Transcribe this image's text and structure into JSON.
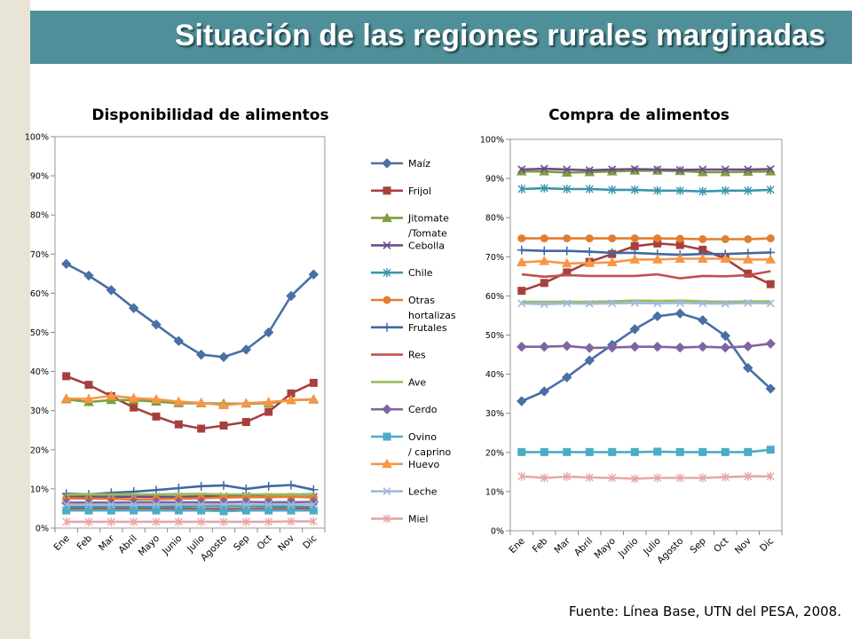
{
  "page": {
    "title": "Situación de las regiones rurales marginadas",
    "source": "Fuente: Línea Base, UTN del PESA, 2008."
  },
  "chart_data": [
    {
      "type": "line",
      "title": "Disponibilidad de alimentos",
      "xlabel": "",
      "ylabel": "",
      "ylim": [
        0,
        100
      ],
      "y_tick_labels": [
        "0%",
        "10%",
        "20%",
        "30%",
        "40%",
        "50%",
        "60%",
        "70%",
        "80%",
        "90%",
        "100%"
      ],
      "categories": [
        "Ene",
        "Feb",
        "Mar",
        "Abril",
        "Mayo",
        "Junio",
        "Julio",
        "Agosto",
        "Sep",
        "Oct",
        "Nov",
        "Dic"
      ],
      "legend_position": "right",
      "series": [
        {
          "name": "Maíz",
          "color": "#4a6fa5",
          "marker": "diamond",
          "values": [
            67.5,
            64.5,
            60.8,
            56.2,
            52.0,
            47.8,
            44.3,
            43.7,
            45.6,
            50.0,
            59.3,
            64.8
          ]
        },
        {
          "name": "Frijol",
          "color": "#a6403d",
          "marker": "square",
          "values": [
            38.8,
            36.6,
            33.7,
            30.8,
            28.5,
            26.5,
            25.4,
            26.2,
            27.1,
            29.7,
            34.4,
            37.1
          ]
        },
        {
          "name": "Jitomate /Tomate",
          "color": "#7f9f3a",
          "marker": "triangle",
          "values": [
            32.9,
            32.2,
            32.7,
            32.7,
            32.3,
            31.9,
            31.9,
            31.8,
            31.8,
            31.9,
            32.7,
            32.9
          ]
        },
        {
          "name": "Cebolla",
          "color": "#6a4c8c",
          "marker": "x",
          "values": [
            8.0,
            8.0,
            8.0,
            8.0,
            8.0,
            8.0,
            8.1,
            8.1,
            8.2,
            8.0,
            8.0,
            8.0
          ]
        },
        {
          "name": "Chile",
          "color": "#3b95b0",
          "marker": "star",
          "values": [
            5.4,
            5.4,
            5.4,
            5.4,
            5.4,
            5.5,
            5.6,
            5.6,
            5.6,
            5.5,
            5.5,
            5.3
          ]
        },
        {
          "name": "Otras hortalizas",
          "color": "#e47d2d",
          "marker": "circle",
          "values": [
            7.6,
            7.5,
            7.5,
            7.3,
            7.4,
            7.5,
            7.6,
            7.8,
            7.9,
            7.9,
            8.0,
            7.8
          ]
        },
        {
          "name": "Frutales",
          "color": "#3f68a3",
          "marker": "plus",
          "values": [
            8.8,
            8.6,
            9.0,
            9.3,
            9.7,
            10.2,
            10.7,
            10.9,
            10.0,
            10.7,
            11.0,
            9.8
          ]
        },
        {
          "name": "Res",
          "color": "#c0504d",
          "marker": "none",
          "values": [
            5.0,
            4.9,
            4.9,
            4.9,
            4.9,
            5.0,
            4.9,
            4.9,
            4.9,
            4.9,
            4.9,
            5.0
          ]
        },
        {
          "name": "Ave",
          "color": "#9bbb59",
          "marker": "none",
          "values": [
            8.6,
            8.6,
            8.6,
            8.6,
            8.6,
            8.7,
            8.7,
            8.6,
            8.6,
            8.6,
            8.6,
            8.7
          ]
        },
        {
          "name": "Cerdo",
          "color": "#8064a2",
          "marker": "diamond",
          "values": [
            6.5,
            6.5,
            6.5,
            6.6,
            6.6,
            6.6,
            6.6,
            6.6,
            6.7,
            6.6,
            6.6,
            6.7
          ]
        },
        {
          "name": "Ovino / caprino",
          "color": "#4bacc6",
          "marker": "square",
          "values": [
            4.5,
            4.5,
            4.5,
            4.5,
            4.5,
            4.5,
            4.5,
            4.3,
            4.5,
            4.5,
            4.5,
            4.5
          ]
        },
        {
          "name": "Huevo",
          "color": "#f79646",
          "marker": "triangle",
          "values": [
            33.1,
            33.0,
            33.8,
            33.2,
            32.9,
            32.3,
            32.0,
            31.4,
            31.9,
            32.2,
            32.7,
            32.8
          ]
        },
        {
          "name": "Leche",
          "color": "#9fb9d8",
          "marker": "x",
          "values": [
            6.0,
            6.0,
            6.0,
            6.0,
            6.0,
            6.0,
            6.0,
            6.0,
            6.0,
            6.0,
            6.0,
            6.0
          ]
        },
        {
          "name": "Miel",
          "color": "#e6a7a7",
          "marker": "star",
          "values": [
            1.6,
            1.6,
            1.6,
            1.6,
            1.6,
            1.6,
            1.6,
            1.6,
            1.6,
            1.6,
            1.7,
            1.7
          ]
        }
      ]
    },
    {
      "type": "line",
      "title": "Compra de alimentos",
      "xlabel": "",
      "ylabel": "",
      "ylim": [
        0,
        100
      ],
      "y_tick_labels": [
        "0%",
        "10%",
        "20%",
        "30%",
        "40%",
        "50%",
        "60%",
        "70%",
        "80%",
        "90%",
        "100%"
      ],
      "categories": [
        "Ene",
        "Feb",
        "Mar",
        "Abril",
        "Mayo",
        "Junio",
        "Julio",
        "Agosto",
        "Sep",
        "Oct",
        "Nov",
        "Dic"
      ],
      "series": [
        {
          "name": "Maíz",
          "color": "#4a6fa5",
          "marker": "diamond",
          "values": [
            33.1,
            35.6,
            39.2,
            43.5,
            47.5,
            51.5,
            54.8,
            55.5,
            53.8,
            49.8,
            41.6,
            36.3
          ]
        },
        {
          "name": "Frijol",
          "color": "#a6403d",
          "marker": "square",
          "values": [
            61.3,
            63.3,
            66.0,
            68.7,
            70.7,
            72.7,
            73.4,
            73.0,
            71.8,
            69.5,
            65.7,
            63.0
          ]
        },
        {
          "name": "Jitomate /Tomate",
          "color": "#7f9f3a",
          "marker": "triangle",
          "values": [
            91.8,
            91.8,
            91.5,
            91.6,
            91.8,
            92.0,
            92.0,
            91.9,
            91.6,
            91.6,
            91.7,
            91.8
          ]
        },
        {
          "name": "Cebolla",
          "color": "#6a4c8c",
          "marker": "x",
          "values": [
            92.3,
            92.5,
            92.3,
            92.1,
            92.3,
            92.4,
            92.3,
            92.2,
            92.3,
            92.3,
            92.3,
            92.4
          ]
        },
        {
          "name": "Chile",
          "color": "#3b95b0",
          "marker": "star",
          "values": [
            87.3,
            87.5,
            87.3,
            87.3,
            87.1,
            87.1,
            86.9,
            86.9,
            86.7,
            86.9,
            86.9,
            87.1
          ]
        },
        {
          "name": "Otras hortalizas",
          "color": "#e47d2d",
          "marker": "circle",
          "values": [
            74.7,
            74.7,
            74.7,
            74.7,
            74.7,
            74.7,
            74.7,
            74.6,
            74.5,
            74.5,
            74.5,
            74.7
          ]
        },
        {
          "name": "Frutales",
          "color": "#3f68a3",
          "marker": "plus",
          "values": [
            71.7,
            71.5,
            71.5,
            71.3,
            71.0,
            71.0,
            70.7,
            70.5,
            70.7,
            70.7,
            70.9,
            71.1
          ]
        },
        {
          "name": "Res",
          "color": "#c0504d",
          "marker": "none",
          "values": [
            65.5,
            64.9,
            65.3,
            65.1,
            65.1,
            65.1,
            65.5,
            64.5,
            65.1,
            65.0,
            65.3,
            66.3
          ]
        },
        {
          "name": "Ave",
          "color": "#9bbb59",
          "marker": "none",
          "values": [
            58.5,
            58.5,
            58.5,
            58.5,
            58.6,
            58.8,
            58.7,
            58.8,
            58.6,
            58.5,
            58.6,
            58.6
          ]
        },
        {
          "name": "Cerdo",
          "color": "#8064a2",
          "marker": "diamond",
          "values": [
            47.0,
            47.0,
            47.2,
            46.7,
            46.8,
            47.0,
            47.0,
            46.8,
            47.0,
            46.8,
            47.1,
            47.8
          ]
        },
        {
          "name": "Ovino / caprino",
          "color": "#4bacc6",
          "marker": "square",
          "values": [
            20.1,
            20.1,
            20.1,
            20.1,
            20.1,
            20.1,
            20.2,
            20.1,
            20.1,
            20.1,
            20.1,
            20.7
          ]
        },
        {
          "name": "Huevo",
          "color": "#f79646",
          "marker": "triangle",
          "values": [
            68.6,
            68.9,
            68.3,
            68.4,
            68.6,
            69.3,
            69.3,
            69.5,
            69.5,
            69.5,
            69.3,
            69.3
          ]
        },
        {
          "name": "Leche",
          "color": "#9fb9d8",
          "marker": "x",
          "values": [
            58.1,
            57.9,
            58.1,
            58.0,
            58.1,
            58.2,
            58.1,
            58.2,
            58.1,
            58.0,
            58.2,
            58.1
          ]
        },
        {
          "name": "Miel",
          "color": "#e6a7a7",
          "marker": "star",
          "values": [
            13.9,
            13.5,
            13.8,
            13.6,
            13.5,
            13.3,
            13.5,
            13.5,
            13.5,
            13.7,
            13.9,
            13.9
          ]
        }
      ]
    }
  ]
}
